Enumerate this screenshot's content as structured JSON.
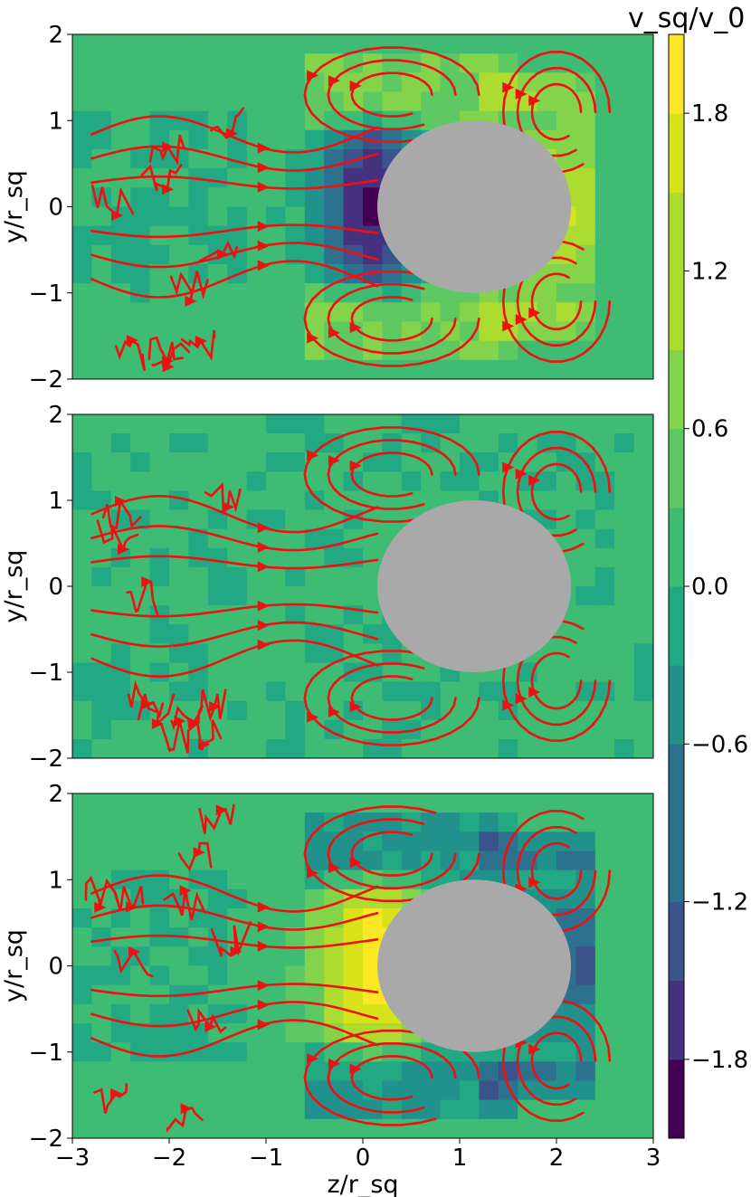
{
  "chart_data": {
    "type": "heatmap",
    "colorbar": {
      "label": "v_sq/v_0",
      "range": [
        -2.1,
        2.1
      ],
      "levels": 14,
      "ticks": [
        1.8,
        1.2,
        0.6,
        0.0,
        -0.6,
        -1.2,
        -1.8
      ],
      "tick_labels": [
        "1.8",
        "1.2",
        "0.6",
        "0.0",
        "−0.6",
        "−1.2",
        "−1.8"
      ],
      "colormap": [
        "#440154",
        "#46317e",
        "#3b528b",
        "#2c728e",
        "#21918c",
        "#23a884",
        "#3fbc73",
        "#5ec962",
        "#84d44b",
        "#addc30",
        "#d8e219",
        "#fde725"
      ]
    },
    "xlabel": "z/r_sq",
    "ylabel": "y/r_sq",
    "xlim": [
      -3,
      3
    ],
    "ylim": [
      -2,
      2
    ],
    "xticks": [
      -3,
      -2,
      -1,
      0,
      1,
      2,
      3
    ],
    "xtick_labels": [
      "−3",
      "−2",
      "−1",
      "0",
      "1",
      "2",
      "3"
    ],
    "yticks": [
      2,
      1,
      0,
      -1,
      -2
    ],
    "ytick_labels": [
      "2",
      "1",
      "0",
      "−1",
      "−2"
    ],
    "obstacle": {
      "center_z": 1.15,
      "center_y": 0.0,
      "radius_z": 1.0,
      "radius_y": 1.0,
      "color": "#a9a9a9"
    },
    "streamline_color": "#ee1111",
    "panels": [
      {
        "name": "top",
        "pattern": "wake-negative-front-positive",
        "vortex_sign": 1
      },
      {
        "name": "middle",
        "pattern": "near-zero",
        "vortex_sign": 1
      },
      {
        "name": "bottom",
        "pattern": "wake-positive-front-negative",
        "vortex_sign": -1
      }
    ]
  }
}
